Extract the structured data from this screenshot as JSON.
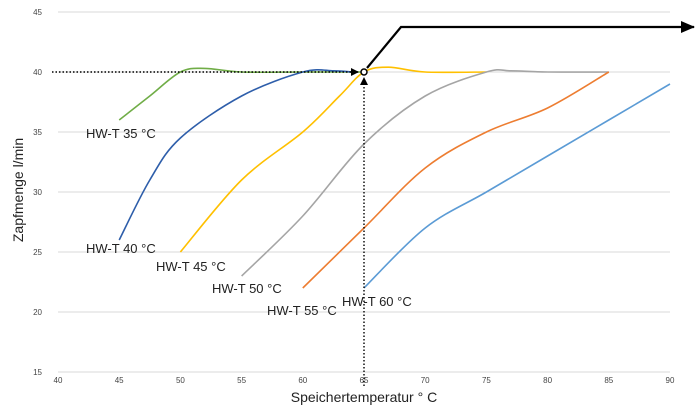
{
  "chart_data": {
    "type": "line",
    "xlabel": "Speichertemperatur ° C",
    "ylabel": "Zapfmenge l/min",
    "xlim": [
      40,
      90
    ],
    "ylim": [
      15,
      45
    ],
    "x_ticks": [
      "40",
      "45",
      "50",
      "55",
      "60",
      "65",
      "70",
      "75",
      "80",
      "85",
      "90"
    ],
    "y_ticks": [
      "15",
      "20",
      "25",
      "30",
      "35",
      "40",
      "45"
    ],
    "grid": "horizontal",
    "series": [
      {
        "name": "HW-T 35 °C",
        "color": "#70ad47",
        "points": [
          [
            45,
            36
          ],
          [
            47.5,
            38
          ],
          [
            50,
            40
          ],
          [
            52,
            40.3
          ],
          [
            55,
            40
          ],
          [
            60,
            40
          ],
          [
            65,
            40
          ]
        ]
      },
      {
        "name": "HW-T 40 °C",
        "color": "#2e5eaa",
        "points": [
          [
            45,
            26
          ],
          [
            47.5,
            31
          ],
          [
            50,
            34.5
          ],
          [
            55,
            38
          ],
          [
            60,
            40
          ],
          [
            62.5,
            40.1
          ],
          [
            64,
            40
          ]
        ]
      },
      {
        "name": "HW-T 45 °C",
        "color": "#ffc000",
        "points": [
          [
            50,
            25
          ],
          [
            55,
            31
          ],
          [
            60,
            35
          ],
          [
            63,
            38
          ],
          [
            65,
            40
          ],
          [
            67,
            40.4
          ],
          [
            70,
            40
          ],
          [
            75,
            40
          ]
        ]
      },
      {
        "name": "HW-T 50 °C",
        "color": "#a5a5a5",
        "points": [
          [
            55,
            23
          ],
          [
            60,
            28
          ],
          [
            65,
            34
          ],
          [
            70,
            38
          ],
          [
            75,
            40
          ],
          [
            77,
            40.1
          ],
          [
            80,
            40
          ],
          [
            85,
            40
          ]
        ]
      },
      {
        "name": "HW-T 55 °C",
        "color": "#ed7d31",
        "points": [
          [
            60,
            22
          ],
          [
            65,
            27
          ],
          [
            70,
            32
          ],
          [
            75,
            35
          ],
          [
            80,
            37
          ],
          [
            85,
            40
          ]
        ]
      },
      {
        "name": "HW-T 60 °C",
        "color": "#5b9bd5",
        "points": [
          [
            65,
            22
          ],
          [
            70,
            27
          ],
          [
            75,
            30
          ],
          [
            80,
            33
          ],
          [
            85,
            36
          ],
          [
            90,
            39
          ]
        ]
      }
    ],
    "annotations": {
      "marker_point": [
        65,
        40
      ],
      "dotted_guides": "from y=40 at x=40 to marker; from x=65 at y=15 up to marker",
      "arrow_to": "top-right"
    }
  }
}
